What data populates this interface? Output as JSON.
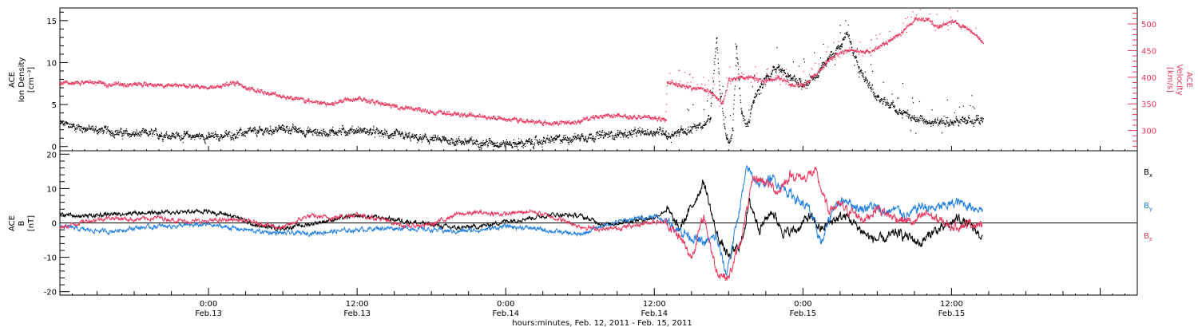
{
  "colors": {
    "bx": "#000000",
    "by": "#1e7de0",
    "bz": "#e8365d",
    "density": "#000000",
    "velocity": "#e8365d",
    "axis": "#000000"
  },
  "panel_top": {
    "left_label": [
      "ACE",
      "Ion Density",
      "[cm⁻³]"
    ],
    "right_label": [
      "ACE",
      "Velocity",
      "[km/s]"
    ]
  },
  "panel_bottom": {
    "left_label": [
      "ACE",
      "B",
      "[nT]"
    ],
    "legend": [
      "B",
      "B",
      "B"
    ],
    "legend_sub": [
      "x",
      "y",
      "z"
    ]
  },
  "xaxis": {
    "ticks": [
      {
        "t": 24,
        "l1": "0:00",
        "l2": "Feb.13"
      },
      {
        "t": 36,
        "l1": "12:00",
        "l2": "Feb.13"
      },
      {
        "t": 48,
        "l1": "0:00",
        "l2": "Feb.14"
      },
      {
        "t": 60,
        "l1": "12:00",
        "l2": "Feb.14"
      },
      {
        "t": 72,
        "l1": "0:00",
        "l2": "Feb.15"
      },
      {
        "t": 84,
        "l1": "12:00",
        "l2": "Feb.15"
      }
    ],
    "label": "hours:minutes, Feb. 12, 2011 - Feb. 15, 2011"
  },
  "chart_data": [
    {
      "type": "scatter",
      "xlabel": "hours:minutes, Feb. 12, 2011 - Feb. 15, 2011",
      "ylabel": "ACE Ion Density [cm⁻³]",
      "y2label": "ACE Velocity [km/s]",
      "xlim": [
        12,
        99
      ],
      "ylim": [
        -0.5,
        16.5
      ],
      "y2lim": [
        262,
        530
      ],
      "yticks": [
        0,
        5,
        10,
        15
      ],
      "y2ticks": [
        300,
        350,
        400,
        450,
        500
      ],
      "series": [
        {
          "axis": "left",
          "x": [
            12,
            13,
            14,
            15,
            16,
            17,
            18,
            19,
            20,
            21,
            22,
            23,
            24,
            25,
            26,
            27,
            28,
            29,
            30,
            31,
            32,
            33,
            34,
            35,
            36,
            37,
            38,
            39,
            40,
            41,
            42,
            43,
            44,
            45,
            46,
            47,
            48,
            49,
            50,
            51,
            52,
            53,
            54,
            55,
            56,
            57,
            58,
            59,
            60,
            60.9,
            61,
            62,
            63,
            64,
            64.5,
            65,
            65.3,
            65.8,
            66,
            66.3,
            66.6,
            67,
            67.5,
            68,
            69,
            70,
            71,
            72,
            73,
            74,
            75,
            75.5,
            76,
            76.5,
            77,
            78,
            79,
            80,
            81,
            82,
            83,
            84,
            85,
            86,
            86.5
          ],
          "values": [
            2.8,
            2.5,
            2.2,
            2.0,
            1.9,
            1.6,
            1.5,
            1.6,
            1.5,
            1.4,
            1.3,
            1.3,
            1.2,
            1.3,
            1.5,
            1.7,
            1.8,
            2.0,
            2.2,
            2.0,
            1.8,
            1.7,
            1.8,
            1.9,
            2.0,
            1.8,
            1.6,
            1.4,
            1.2,
            1.0,
            0.9,
            0.8,
            0.7,
            0.6,
            0.5,
            0.5,
            0.4,
            0.4,
            0.5,
            0.7,
            0.9,
            1.0,
            1.2,
            1.3,
            1.4,
            1.5,
            1.6,
            1.7,
            1.8,
            1.9,
            1.0,
            1.8,
            2.2,
            2.6,
            3.5,
            13.0,
            6.0,
            1.0,
            0.5,
            2.0,
            12.0,
            4.0,
            2.5,
            5.5,
            8.5,
            9.5,
            8.0,
            7.5,
            8.5,
            10.5,
            12.0,
            13.5,
            11.5,
            9.5,
            8.0,
            6.0,
            5.0,
            4.0,
            3.5,
            3.0,
            2.8,
            2.9,
            3.0,
            3.2,
            3.4
          ]
        },
        {
          "axis": "right",
          "x": [
            12,
            13,
            14,
            15,
            16,
            17,
            17.5,
            18,
            19,
            20,
            21,
            22,
            23,
            24,
            25,
            26,
            27,
            28,
            29,
            30,
            31,
            32,
            33,
            34,
            35,
            36,
            37,
            38,
            39,
            40,
            41,
            42,
            43,
            44,
            45,
            46,
            47,
            48,
            49,
            50,
            51,
            52,
            53,
            54,
            55,
            56,
            57,
            58,
            59,
            60,
            60.9,
            61,
            62,
            63,
            64,
            64.5,
            65,
            65.5,
            66,
            67,
            68,
            69,
            70,
            71,
            72,
            73,
            74,
            75,
            76,
            77,
            78,
            79,
            80,
            81,
            82,
            83,
            84,
            85,
            86,
            86.5
          ],
          "values": [
            390,
            388,
            392,
            390,
            387,
            389,
            385,
            388,
            387,
            386,
            385,
            385,
            383,
            381,
            384,
            392,
            380,
            375,
            370,
            365,
            360,
            356,
            352,
            350,
            360,
            361,
            356,
            350,
            346,
            343,
            339,
            336,
            333,
            331,
            329,
            327,
            325,
            322,
            320,
            318,
            315,
            314,
            316,
            318,
            325,
            330,
            328,
            327,
            326,
            324,
            320,
            392,
            385,
            380,
            378,
            372,
            362,
            352,
            395,
            402,
            398,
            392,
            402,
            388,
            385,
            405,
            432,
            448,
            452,
            448,
            455,
            470,
            485,
            510,
            508,
            495,
            505,
            496,
            480,
            465
          ]
        }
      ]
    },
    {
      "type": "line",
      "xlabel": "hours:minutes, Feb. 12, 2011 - Feb. 15, 2011",
      "ylabel": "ACE B [nT]",
      "xlim": [
        12,
        99
      ],
      "ylim": [
        -21,
        21
      ],
      "yticks": [
        -20,
        -10,
        0,
        10,
        20
      ],
      "series": [
        {
          "name": "Bx",
          "x": [
            12,
            14,
            16,
            18,
            20,
            22,
            24,
            26,
            28,
            30,
            32,
            34,
            36,
            38,
            40,
            42,
            44,
            46,
            48,
            50,
            52,
            54,
            56,
            58,
            60,
            61,
            62,
            63,
            64,
            65,
            66,
            67,
            67.7,
            68.5,
            69.5,
            70.5,
            71.5,
            72.5,
            73.5,
            74.5,
            75.5,
            76.5,
            77.5,
            78.5,
            79.5,
            80.5,
            81.5,
            82.5,
            83.5,
            84.5,
            85.5,
            86.5
          ],
          "values": [
            2.5,
            2.0,
            2.5,
            3.0,
            3.0,
            3.2,
            3.4,
            2.0,
            -1.0,
            -1.5,
            -0.5,
            1.0,
            2.0,
            1.5,
            0.5,
            -0.5,
            -1.5,
            -1.0,
            0.5,
            1.5,
            2.5,
            2.0,
            -0.5,
            0.5,
            1.5,
            4.0,
            -2.0,
            4.5,
            12.0,
            -3.0,
            -10.0,
            -6.0,
            6.0,
            -1.5,
            3.5,
            -3.0,
            -2.0,
            2.0,
            -2.0,
            1.0,
            2.0,
            -1.5,
            -4.5,
            -5.0,
            -3.0,
            -4.0,
            -6.0,
            -2.5,
            -1.5,
            1.5,
            -1.0,
            -4.0
          ]
        },
        {
          "name": "By",
          "x": [
            12,
            14,
            16,
            18,
            20,
            22,
            24,
            26,
            28,
            30,
            32,
            34,
            36,
            38,
            40,
            42,
            44,
            46,
            48,
            50,
            52,
            54,
            56,
            58,
            60,
            61,
            62,
            63,
            64,
            65,
            65.8,
            66.5,
            67.5,
            68.5,
            69.5,
            70.5,
            71.5,
            72.5,
            73.5,
            74.5,
            75.5,
            76.5,
            77.5,
            78.5,
            79.5,
            80.5,
            81.5,
            82.5,
            83.5,
            84.5,
            85.5,
            86.5
          ],
          "values": [
            -1.0,
            -2.0,
            -2.5,
            -1.5,
            -1.0,
            -0.8,
            -0.5,
            -1.5,
            -2.5,
            -3.0,
            -3.0,
            -2.5,
            -2.0,
            -1.5,
            -1.5,
            -2.0,
            -2.5,
            -2.0,
            -1.0,
            -1.5,
            -2.5,
            -3.5,
            -0.5,
            1.0,
            2.0,
            0.5,
            -2.0,
            -4.0,
            -6.0,
            -4.0,
            -15.0,
            -3.0,
            16.0,
            11.0,
            13.0,
            10.0,
            7.0,
            4.0,
            -6.0,
            5.0,
            7.0,
            4.0,
            5.0,
            3.0,
            4.0,
            2.0,
            5.0,
            4.0,
            5.0,
            6.0,
            5.0,
            4.0
          ]
        },
        {
          "name": "Bz",
          "x": [
            12,
            14,
            16,
            18,
            20,
            22,
            24,
            26,
            28,
            30,
            32,
            34,
            36,
            38,
            40,
            42,
            44,
            46,
            48,
            50,
            52,
            54,
            56,
            58,
            60,
            61,
            62,
            63,
            64,
            65,
            66,
            67,
            68,
            69,
            70,
            71,
            72,
            73,
            74,
            75,
            76,
            77,
            78,
            79,
            80,
            81,
            82,
            83,
            84,
            85,
            86,
            86.5
          ],
          "values": [
            -1.5,
            0.5,
            1.5,
            1.0,
            1.5,
            0.5,
            0.5,
            1.0,
            0.0,
            -1.5,
            2.0,
            1.5,
            2.5,
            1.0,
            -1.0,
            -0.5,
            2.5,
            3.0,
            2.5,
            3.5,
            1.5,
            -1.0,
            -2.0,
            -1.0,
            0.5,
            0.0,
            -4.0,
            -10.0,
            2.0,
            -14.0,
            -16.0,
            -5.0,
            13.0,
            12.0,
            9.0,
            14.0,
            13.0,
            15.0,
            4.0,
            5.0,
            3.0,
            1.0,
            4.5,
            2.0,
            1.0,
            0.0,
            3.0,
            0.5,
            -1.0,
            -0.5,
            0.0,
            -1.0
          ]
        }
      ]
    }
  ]
}
